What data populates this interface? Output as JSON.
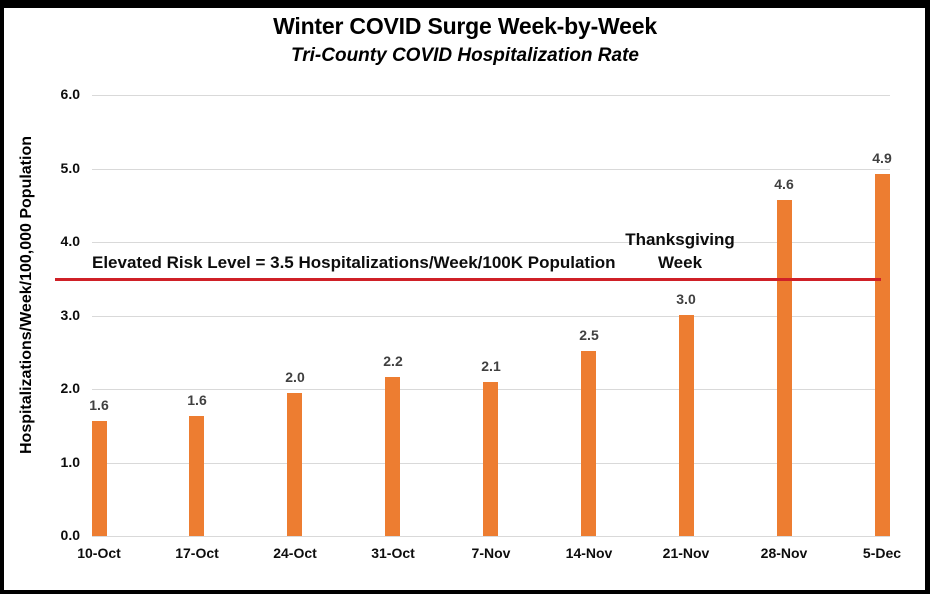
{
  "chart_data": {
    "type": "bar",
    "title": "Winter COVID Surge Week-by-Week",
    "subtitle": "Tri-County COVID Hospitalization Rate",
    "ylabel": "Hospitalizations/Week/100,000 Population",
    "xlabel": "",
    "ylim": [
      0,
      6
    ],
    "ytick_step": 1.0,
    "ytick_labels": [
      "0.0",
      "1.0",
      "2.0",
      "3.0",
      "4.0",
      "5.0",
      "6.0"
    ],
    "grid": "horizontal",
    "legend": "none",
    "categories": [
      "10-Oct",
      "17-Oct",
      "24-Oct",
      "31-Oct",
      "7-Nov",
      "14-Nov",
      "21-Nov",
      "28-Nov",
      "5-Dec"
    ],
    "values": [
      1.6,
      1.6,
      2.0,
      2.2,
      2.1,
      2.5,
      3.0,
      4.6,
      4.9
    ],
    "value_labels": [
      "1.6",
      "1.6",
      "2.0",
      "2.2",
      "2.1",
      "2.5",
      "3.0",
      "4.6",
      "4.9"
    ],
    "bar_heights_precise": [
      1.56,
      1.63,
      1.95,
      2.16,
      2.09,
      2.52,
      3.01,
      4.57,
      4.92
    ],
    "threshold_line": {
      "value": 3.5,
      "label": "Elevated Risk Level = 3.5 Hospitalizations/Week/100K Population",
      "color": "#CF2027"
    },
    "annotations": [
      {
        "lines": [
          "Thanksgiving",
          "Week"
        ],
        "category": "21-Nov"
      }
    ],
    "colors": {
      "bar": "#ED7D31",
      "gridline": "#D9D9D9",
      "axis_line": "#D9D9D9",
      "data_label": "#404040",
      "text": "#0D0D0D",
      "frame": "#000000",
      "background": "#FFFFFF"
    }
  }
}
